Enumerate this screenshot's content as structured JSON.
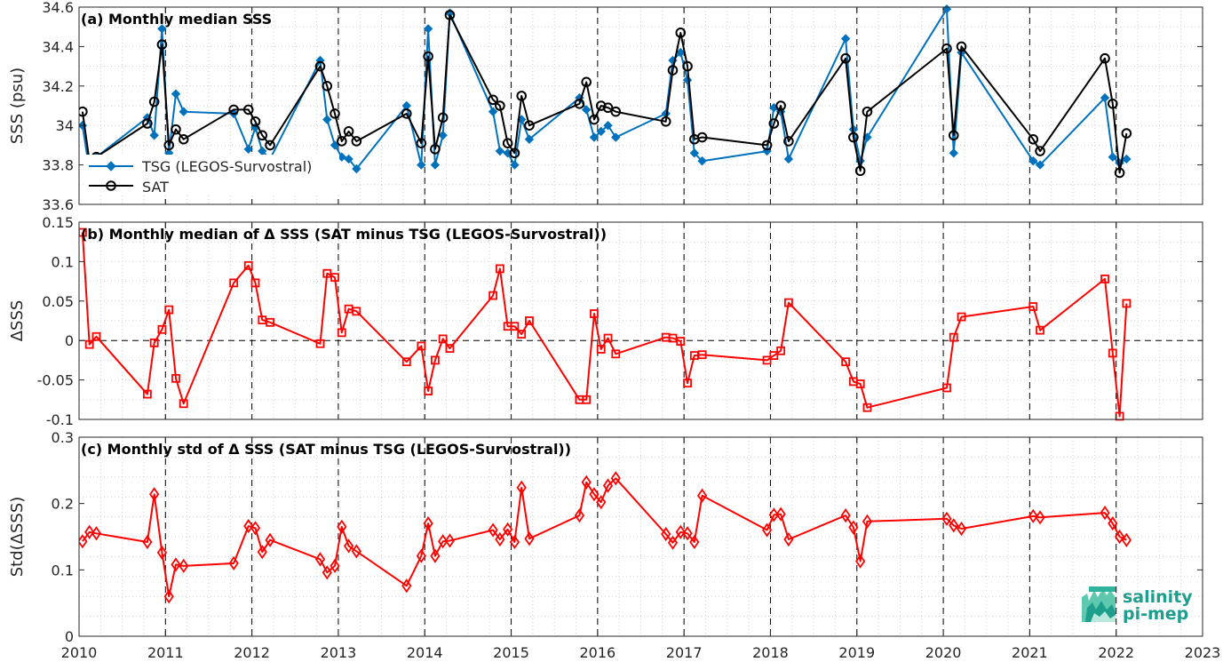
{
  "chart_data": [
    {
      "type": "line",
      "title": "(a) Monthly median SSS",
      "xlabel": "",
      "ylabel": "SSS (psu)",
      "xlim": [
        2010,
        2023
      ],
      "ylim": [
        33.6,
        34.6
      ],
      "xticks": [
        "2010",
        "2011",
        "2012",
        "2013",
        "2014",
        "2015",
        "2016",
        "2017",
        "2018",
        "2019",
        "2020",
        "2021",
        "2022",
        "2023"
      ],
      "yticks": [
        "33.6",
        "33.8",
        "34",
        "34.2",
        "34.4",
        "34.6"
      ],
      "grid": "dotted",
      "legend": "left",
      "series": [
        {
          "name": "TSG (LEGOS-Survostral)",
          "color": "#0072bd",
          "marker": "diamond-filled",
          "x": [
            2010.04,
            2010.12,
            2010.2,
            2010.79,
            2010.87,
            2010.96,
            2011.04,
            2011.12,
            2011.21,
            2011.79,
            2011.96,
            2012.04,
            2012.12,
            2012.21,
            2012.79,
            2012.87,
            2012.96,
            2013.04,
            2013.12,
            2013.21,
            2013.79,
            2013.96,
            2014.04,
            2014.12,
            2014.21,
            2014.29,
            2014.79,
            2014.87,
            2014.96,
            2015.04,
            2015.12,
            2015.21,
            2015.79,
            2015.87,
            2015.96,
            2016.04,
            2016.12,
            2016.21,
            2016.79,
            2016.87,
            2016.96,
            2017.04,
            2017.12,
            2017.21,
            2017.96,
            2018.04,
            2018.12,
            2018.21,
            2018.87,
            2018.96,
            2019.04,
            2019.12,
            2020.04,
            2020.12,
            2020.21,
            2021.04,
            2021.12,
            2021.87,
            2021.96,
            2022.04,
            2022.12
          ],
          "y": [
            34.0,
            33.77,
            33.84,
            34.04,
            33.95,
            34.49,
            33.86,
            34.16,
            34.07,
            34.06,
            33.88,
            33.99,
            33.87,
            33.83,
            34.33,
            34.03,
            33.9,
            33.84,
            33.83,
            33.78,
            34.1,
            33.8,
            34.49,
            33.8,
            33.95,
            34.57,
            34.07,
            33.87,
            33.86,
            33.8,
            34.03,
            33.93,
            34.14,
            34.08,
            33.94,
            33.97,
            34.0,
            33.94,
            34.06,
            34.33,
            34.37,
            34.23,
            33.86,
            33.82,
            33.87,
            34.09,
            34.07,
            33.83,
            34.44,
            33.98,
            33.82,
            33.94,
            34.59,
            33.86,
            34.37,
            33.82,
            33.8,
            34.14,
            33.84,
            33.81,
            33.83
          ]
        },
        {
          "name": "SAT",
          "color": "#000000",
          "marker": "circle-open",
          "x": [
            2010.04,
            2010.12,
            2010.2,
            2010.79,
            2010.87,
            2010.96,
            2011.04,
            2011.12,
            2011.21,
            2011.79,
            2011.96,
            2012.04,
            2012.12,
            2012.21,
            2012.79,
            2012.87,
            2012.96,
            2013.04,
            2013.12,
            2013.21,
            2013.79,
            2013.96,
            2014.04,
            2014.12,
            2014.21,
            2014.29,
            2014.79,
            2014.87,
            2014.96,
            2015.04,
            2015.12,
            2015.21,
            2015.79,
            2015.87,
            2015.96,
            2016.04,
            2016.12,
            2016.21,
            2016.79,
            2016.87,
            2016.96,
            2017.04,
            2017.12,
            2017.21,
            2017.96,
            2018.04,
            2018.12,
            2018.21,
            2018.87,
            2018.96,
            2019.04,
            2019.12,
            2020.04,
            2020.12,
            2020.21,
            2021.04,
            2021.12,
            2021.87,
            2021.96,
            2022.04,
            2022.12
          ],
          "y": [
            34.07,
            33.82,
            33.84,
            34.01,
            34.12,
            34.41,
            33.9,
            33.98,
            33.93,
            34.08,
            34.08,
            34.02,
            33.95,
            33.9,
            34.3,
            34.2,
            34.06,
            33.92,
            33.97,
            33.92,
            34.06,
            33.91,
            34.35,
            33.88,
            34.04,
            34.56,
            34.13,
            34.1,
            33.91,
            33.86,
            34.15,
            34.0,
            34.11,
            34.22,
            34.03,
            34.1,
            34.09,
            34.07,
            34.02,
            34.28,
            34.47,
            34.3,
            33.93,
            33.94,
            33.9,
            34.01,
            34.1,
            33.92,
            34.34,
            33.94,
            33.77,
            34.07,
            34.39,
            33.95,
            34.4,
            33.93,
            33.87,
            34.34,
            34.11,
            33.76,
            33.96
          ]
        }
      ]
    },
    {
      "type": "line",
      "title": "(b) Monthly median of Δ SSS (SAT minus TSG (LEGOS-Survostral))",
      "xlabel": "",
      "ylabel": "ΔSSS",
      "xlim": [
        2010,
        2023
      ],
      "ylim": [
        -0.1,
        0.15
      ],
      "xticks": [
        "2010",
        "2011",
        "2012",
        "2013",
        "2014",
        "2015",
        "2016",
        "2017",
        "2018",
        "2019",
        "2020",
        "2021",
        "2022",
        "2023"
      ],
      "yticks": [
        "-0.1",
        "-0.05",
        "0",
        "0.05",
        "0.1",
        "0.15"
      ],
      "zero_line": "dashed",
      "grid": "dotted",
      "series": [
        {
          "name": "",
          "color": "#ff0000",
          "marker": "square-open",
          "x": [
            2010.04,
            2010.12,
            2010.2,
            2010.79,
            2010.87,
            2010.96,
            2011.04,
            2011.12,
            2011.21,
            2011.79,
            2011.96,
            2012.04,
            2012.12,
            2012.21,
            2012.79,
            2012.87,
            2012.96,
            2013.04,
            2013.12,
            2013.21,
            2013.79,
            2013.96,
            2014.04,
            2014.12,
            2014.21,
            2014.29,
            2014.79,
            2014.87,
            2014.96,
            2015.04,
            2015.12,
            2015.21,
            2015.79,
            2015.87,
            2015.96,
            2016.04,
            2016.12,
            2016.21,
            2016.79,
            2016.87,
            2016.96,
            2017.04,
            2017.12,
            2017.21,
            2017.96,
            2018.04,
            2018.12,
            2018.21,
            2018.87,
            2018.96,
            2019.04,
            2019.12,
            2020.04,
            2020.12,
            2020.21,
            2021.04,
            2021.12,
            2021.87,
            2021.96,
            2022.04,
            2022.12
          ],
          "y": [
            0.137,
            -0.005,
            0.005,
            -0.068,
            -0.003,
            0.014,
            0.039,
            -0.048,
            -0.08,
            0.073,
            0.095,
            0.073,
            0.026,
            0.023,
            -0.004,
            0.085,
            0.08,
            0.01,
            0.04,
            0.037,
            -0.027,
            -0.007,
            -0.064,
            -0.025,
            0.002,
            -0.01,
            0.057,
            0.091,
            0.018,
            0.018,
            0.008,
            0.025,
            -0.075,
            -0.075,
            0.034,
            -0.011,
            0.003,
            -0.017,
            0.004,
            0.003,
            -0.001,
            -0.054,
            -0.019,
            -0.018,
            -0.025,
            -0.019,
            -0.013,
            0.048,
            -0.027,
            -0.052,
            -0.055,
            -0.085,
            -0.06,
            0.004,
            0.03,
            0.043,
            0.013,
            0.078,
            -0.016,
            -0.096,
            0.047
          ]
        }
      ]
    },
    {
      "type": "line",
      "title": "(c) Monthly std of Δ SSS (SAT minus TSG (LEGOS-Survostral))",
      "xlabel": "",
      "ylabel": "Std(ΔSSS)",
      "xlim": [
        2010,
        2023
      ],
      "ylim": [
        0,
        0.3
      ],
      "xticks": [
        "2010",
        "2011",
        "2012",
        "2013",
        "2014",
        "2015",
        "2016",
        "2017",
        "2018",
        "2019",
        "2020",
        "2021",
        "2022",
        "2023"
      ],
      "yticks": [
        "0",
        "0.1",
        "0.2",
        "0.3"
      ],
      "grid": "dotted",
      "series": [
        {
          "name": "",
          "color": "#ff0000",
          "marker": "diamond-open",
          "x": [
            2010.04,
            2010.12,
            2010.2,
            2010.79,
            2010.87,
            2010.96,
            2011.04,
            2011.12,
            2011.21,
            2011.79,
            2011.96,
            2012.04,
            2012.12,
            2012.21,
            2012.79,
            2012.87,
            2012.96,
            2013.04,
            2013.12,
            2013.21,
            2013.79,
            2013.96,
            2014.04,
            2014.12,
            2014.21,
            2014.29,
            2014.79,
            2014.87,
            2014.96,
            2015.04,
            2015.12,
            2015.21,
            2015.79,
            2015.87,
            2015.96,
            2016.04,
            2016.12,
            2016.21,
            2016.79,
            2016.87,
            2016.96,
            2017.04,
            2017.12,
            2017.21,
            2017.96,
            2018.04,
            2018.12,
            2018.21,
            2018.87,
            2018.96,
            2019.04,
            2019.12,
            2020.04,
            2020.12,
            2020.21,
            2021.04,
            2021.12,
            2021.87,
            2021.96,
            2022.04,
            2022.12
          ],
          "y": [
            0.143,
            0.157,
            0.155,
            0.142,
            0.214,
            0.126,
            0.06,
            0.108,
            0.106,
            0.11,
            0.166,
            0.163,
            0.127,
            0.145,
            0.116,
            0.096,
            0.106,
            0.165,
            0.136,
            0.128,
            0.076,
            0.121,
            0.17,
            0.121,
            0.143,
            0.144,
            0.16,
            0.146,
            0.161,
            0.142,
            0.224,
            0.147,
            0.182,
            0.232,
            0.214,
            0.202,
            0.227,
            0.238,
            0.154,
            0.141,
            0.157,
            0.155,
            0.142,
            0.212,
            0.16,
            0.183,
            0.184,
            0.146,
            0.182,
            0.164,
            0.113,
            0.173,
            0.177,
            0.167,
            0.162,
            0.181,
            0.179,
            0.186,
            0.17,
            0.15,
            0.145
          ]
        }
      ]
    }
  ],
  "logo": {
    "line1": "salinity",
    "line2": "pi-mep",
    "color": "#1e9e8c"
  }
}
